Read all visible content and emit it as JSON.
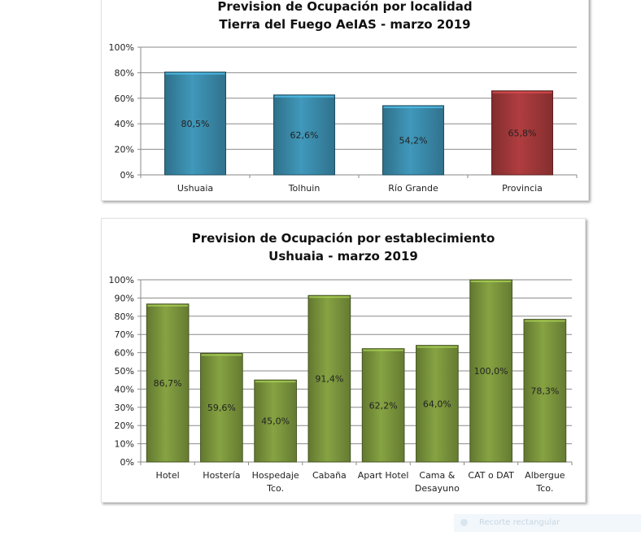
{
  "chart_data": [
    {
      "type": "bar",
      "title_lines": [
        "Prevision de Ocupación por localidad",
        "Tierra del Fuego AeIAS - marzo 2019"
      ],
      "categories": [
        [
          "Ushuaia"
        ],
        [
          "Tolhuin"
        ],
        [
          "Río Grande"
        ],
        [
          "Provincia"
        ]
      ],
      "values": [
        80.5,
        62.6,
        54.2,
        65.8
      ],
      "value_labels": [
        "80,5%",
        "62,6%",
        "54,2%",
        "65,8%"
      ],
      "bar_colors": [
        "#3c8fb0",
        "#3c8fb0",
        "#3c8fb0",
        "#a63a3b"
      ],
      "yticks": [
        "0%",
        "20%",
        "40%",
        "60%",
        "80%",
        "100%"
      ],
      "ylim": [
        0,
        100
      ],
      "grid": true,
      "legend": "none"
    },
    {
      "type": "bar",
      "title_lines": [
        "Prevision de Ocupación por establecimiento",
        "Ushuaia - marzo 2019"
      ],
      "categories": [
        [
          "Hotel"
        ],
        [
          "Hostería"
        ],
        [
          "Hospedaje",
          "Tco."
        ],
        [
          "Cabaña"
        ],
        [
          "Apart Hotel"
        ],
        [
          "Cama &",
          "Desayuno"
        ],
        [
          "CAT o DAT"
        ],
        [
          "Albergue",
          "Tco."
        ]
      ],
      "values": [
        86.7,
        59.6,
        45.0,
        91.4,
        62.2,
        64.0,
        100.0,
        78.3
      ],
      "value_labels": [
        "86,7%",
        "59,6%",
        "45,0%",
        "91,4%",
        "62,2%",
        "64,0%",
        "100,0%",
        "78,3%"
      ],
      "bar_colors": [
        "#7e9a3e",
        "#7e9a3e",
        "#7e9a3e",
        "#7e9a3e",
        "#7e9a3e",
        "#7e9a3e",
        "#7e9a3e",
        "#7e9a3e"
      ],
      "yticks": [
        "0%",
        "10%",
        "20%",
        "30%",
        "40%",
        "50%",
        "60%",
        "70%",
        "80%",
        "90%",
        "100%"
      ],
      "ylim": [
        0,
        100
      ],
      "grid": true,
      "legend": "none"
    }
  ],
  "snip_hint": {
    "label": "Recorte rectangular",
    "icon": "circle-icon"
  }
}
